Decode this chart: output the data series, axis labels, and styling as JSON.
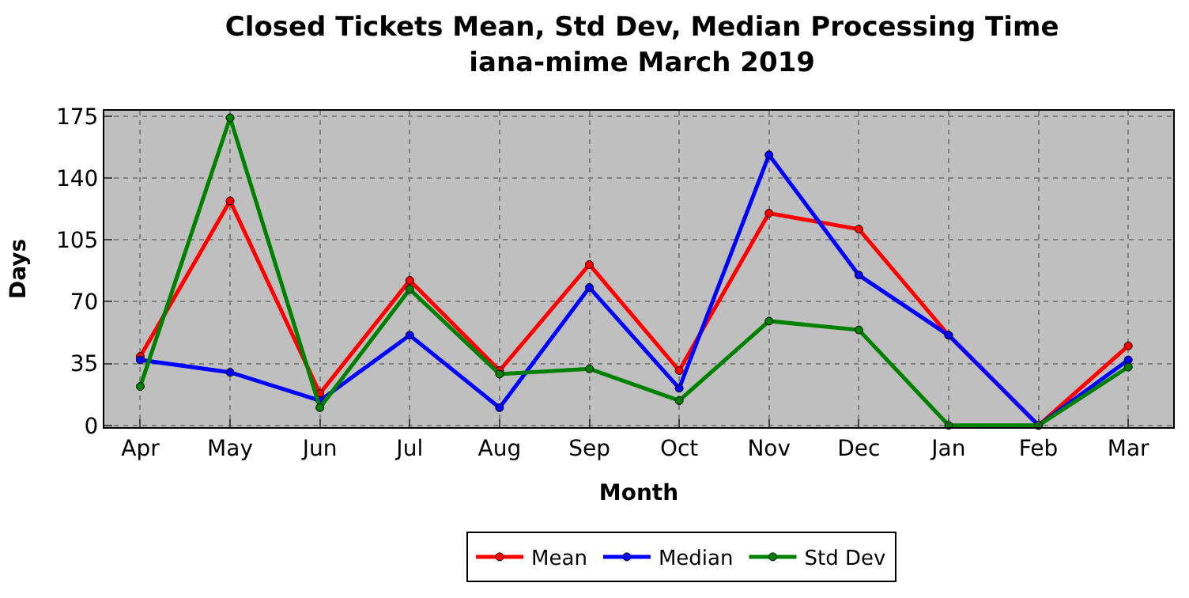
{
  "chart_data": {
    "type": "line",
    "title": "Closed Tickets Mean, Std Dev, Median Processing Time\niana-mime March 2019",
    "xlabel": "Month",
    "ylabel": "Days",
    "categories": [
      "Apr",
      "May",
      "Jun",
      "Jul",
      "Aug",
      "Sep",
      "Oct",
      "Nov",
      "Dec",
      "Jan",
      "Feb",
      "Mar"
    ],
    "series": [
      {
        "name": "Mean",
        "color": "#ff0000",
        "values": [
          39,
          127,
          18,
          82,
          31,
          91,
          31,
          120,
          111,
          51,
          0,
          45
        ]
      },
      {
        "name": "Median",
        "color": "#0000ff",
        "values": [
          37,
          30,
          14,
          51,
          10,
          78,
          21,
          153,
          85,
          51,
          0,
          37
        ]
      },
      {
        "name": "Std Dev",
        "color": "#008000",
        "values": [
          22,
          174,
          10,
          77,
          29,
          32,
          14,
          59,
          54,
          0,
          0,
          33
        ]
      }
    ],
    "ylim": [
      -1,
      178
    ],
    "yticks": [
      0,
      35,
      70,
      105,
      140,
      175
    ],
    "grid": true,
    "legend": "bottom",
    "marker": "circle",
    "line_style": "solid"
  }
}
